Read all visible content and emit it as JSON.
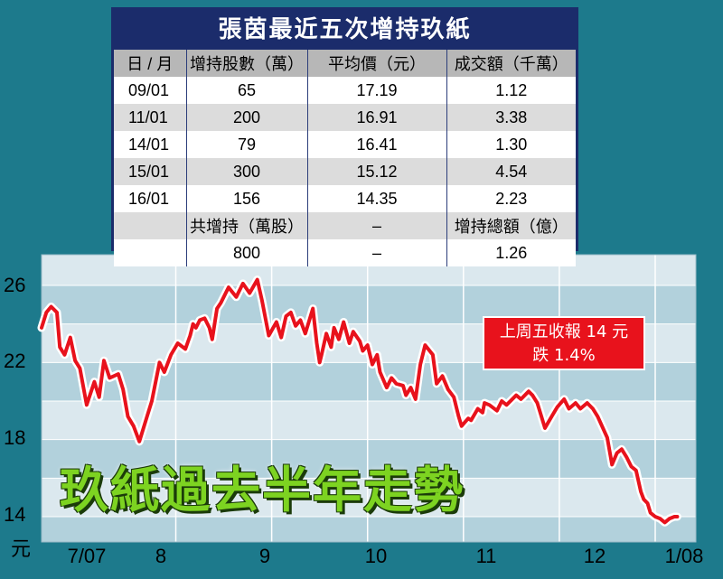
{
  "table": {
    "title": "張茵最近五次增持玖紙",
    "headers": [
      "日 / 月",
      "增持股數（萬）",
      "平均價（元）",
      "成交額（千萬）"
    ],
    "rows": [
      [
        "09/01",
        "65",
        "17.19",
        "1.12"
      ],
      [
        "11/01",
        "200",
        "16.91",
        "3.38"
      ],
      [
        "14/01",
        "79",
        "16.41",
        "1.30"
      ],
      [
        "15/01",
        "300",
        "15.12",
        "4.54"
      ],
      [
        "16/01",
        "156",
        "14.35",
        "2.23"
      ],
      [
        "",
        "共增持（萬股）",
        "–",
        "增持總額（億）"
      ],
      [
        "",
        "800",
        "–",
        "1.26"
      ]
    ]
  },
  "chart_title": "玖紙過去半年走勢",
  "callout": {
    "line1": "上周五收報 14 元",
    "line2": "跌 1.4%"
  },
  "colors": {
    "line": "#e8121c",
    "background": "#1d7a8c",
    "table_header": "#1b2c6b",
    "title_green": "#7dd321"
  },
  "chart_data": {
    "type": "line",
    "ylabel": "元",
    "ylim": [
      13,
      27.5
    ],
    "yticks": [
      26,
      22,
      18,
      14
    ],
    "xticks": [
      {
        "label": "7/07",
        "x": 0.07
      },
      {
        "label": "8",
        "x": 1.0
      },
      {
        "label": "9",
        "x": 2.0
      },
      {
        "label": "10",
        "x": 3.0
      },
      {
        "label": "11",
        "x": 4.0
      },
      {
        "label": "12",
        "x": 5.0
      },
      {
        "label": "1/08",
        "x": 5.75
      }
    ],
    "xlim": [
      -0.9,
      5.83
    ],
    "series": [
      {
        "x": [
          -0.9,
          -0.85,
          -0.8,
          -0.74,
          -0.71,
          -0.66,
          -0.6,
          -0.55,
          -0.5,
          -0.43,
          -0.35,
          -0.3,
          -0.25,
          -0.19,
          -0.1,
          -0.05,
          0.0,
          0.06,
          0.12,
          0.2,
          0.25,
          0.33,
          0.38,
          0.45,
          0.52,
          0.6,
          0.65,
          0.68,
          0.71,
          0.75,
          0.8,
          0.85,
          0.88,
          0.93,
          0.97,
          1.05,
          1.13,
          1.2,
          1.27,
          1.35,
          1.4,
          1.47,
          1.55,
          1.6,
          1.65,
          1.7,
          1.75,
          1.8,
          1.85,
          1.93,
          1.97,
          2.0,
          2.02,
          2.07,
          2.12,
          2.15,
          2.2,
          2.25,
          2.31,
          2.35,
          2.42,
          2.45,
          2.5,
          2.55,
          2.6,
          2.63,
          2.7,
          2.75,
          2.8,
          2.87,
          2.9,
          2.95,
          3.0,
          3.05,
          3.1,
          3.18,
          3.22,
          3.28,
          3.34,
          3.4,
          3.45,
          3.48,
          3.55,
          3.58,
          3.65,
          3.7,
          3.72,
          3.77,
          3.85,
          3.9,
          3.95,
          4.05,
          4.1,
          4.18,
          4.22,
          4.27,
          4.35,
          4.42,
          4.48,
          4.55,
          4.6,
          4.67,
          4.72,
          4.79,
          4.85,
          4.9,
          5.0,
          5.05,
          5.1,
          5.15,
          5.2,
          5.25,
          5.3,
          5.35,
          5.38,
          5.42,
          5.45,
          5.5,
          5.55,
          5.6,
          5.65,
          5.7,
          5.73
        ],
        "values": [
          23.8,
          24.6,
          24.9,
          24.6,
          22.8,
          22.4,
          23.3,
          22.1,
          21.7,
          19.8,
          21.0,
          20.2,
          22.1,
          21.2,
          21.4,
          20.6,
          19.2,
          18.7,
          17.9,
          19.2,
          20.0,
          22.0,
          21.5,
          22.4,
          23.0,
          22.7,
          23.4,
          24.0,
          23.8,
          24.2,
          24.3,
          23.8,
          23.2,
          24.8,
          25.1,
          25.9,
          25.4,
          26.1,
          25.6,
          26.3,
          25.2,
          23.4,
          24.1,
          23.3,
          24.4,
          24.6,
          23.9,
          24.2,
          23.5,
          24.8,
          23.0,
          22.0,
          22.4,
          23.5,
          22.8,
          23.8,
          23.2,
          24.1,
          23.0,
          23.6,
          23.1,
          22.6,
          22.9,
          21.9,
          22.4,
          21.5,
          20.7,
          21.2,
          20.9,
          20.8,
          20.3,
          20.7,
          20.1,
          21.9,
          22.9,
          22.4,
          20.9,
          21.3,
          20.6,
          20.2,
          19.2,
          18.7,
          19.1,
          19.0,
          19.6,
          19.4,
          19.9,
          19.8,
          19.5,
          20.0,
          19.8,
          20.3,
          20.1,
          20.5,
          20.3,
          19.9,
          18.6,
          19.2,
          19.7,
          20.1,
          19.6,
          19.9,
          19.6,
          19.9,
          19.6,
          19.2,
          18.1,
          16.7,
          17.3,
          17.5,
          17.1,
          16.6,
          16.4,
          15.3,
          14.9,
          14.7,
          14.2,
          14.0,
          13.9,
          13.7,
          13.9,
          14.0,
          14.0
        ]
      }
    ]
  }
}
